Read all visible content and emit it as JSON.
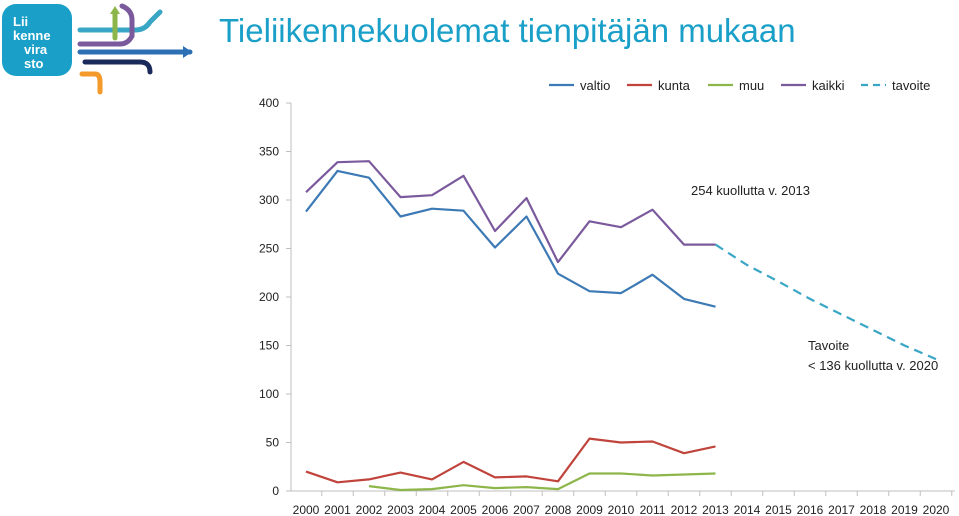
{
  "header": {
    "title": "Tieliikennekuolemat tienpitäjän mukaan",
    "logo_text": [
      "Lii",
      "kenne",
      "vira",
      "sto"
    ]
  },
  "colors": {
    "brand": "#1aa0c8",
    "valtio": "#3d7ab5",
    "kunta": "#c0443c",
    "muu": "#8db64a",
    "kaikki": "#7a5a9c",
    "tavoite": "#3aa6c6",
    "grid": "#d9d9d9"
  },
  "chart_data": {
    "type": "line",
    "title": "",
    "xlabel": "",
    "ylabel": "",
    "ylim": [
      0,
      400
    ],
    "yticks": [
      0,
      50,
      100,
      150,
      200,
      250,
      300,
      350,
      400
    ],
    "grid": false,
    "legend": "top-right",
    "categories": [
      "2000",
      "2001",
      "2002",
      "2003",
      "2004",
      "2005",
      "2006",
      "2007",
      "2008",
      "2009",
      "2010",
      "2011",
      "2012",
      "2013",
      "2014",
      "2015",
      "2016",
      "2017",
      "2018",
      "2019",
      "2020"
    ],
    "series": [
      {
        "name": "valtio",
        "key": "valtio",
        "dashed": false,
        "values": [
          288,
          330,
          323,
          283,
          291,
          289,
          251,
          283,
          224,
          206,
          204,
          223,
          198,
          190,
          null,
          null,
          null,
          null,
          null,
          null,
          null
        ]
      },
      {
        "name": "kunta",
        "key": "kunta",
        "dashed": false,
        "values": [
          20,
          9,
          12,
          19,
          12,
          30,
          14,
          15,
          10,
          54,
          50,
          51,
          39,
          46,
          null,
          null,
          null,
          null,
          null,
          null,
          null
        ]
      },
      {
        "name": "muu",
        "key": "muu",
        "dashed": false,
        "values": [
          null,
          null,
          5,
          1,
          2,
          6,
          3,
          4,
          2,
          18,
          18,
          16,
          17,
          18,
          null,
          null,
          null,
          null,
          null,
          null,
          null
        ]
      },
      {
        "name": "kaikki",
        "key": "kaikki",
        "dashed": false,
        "values": [
          308,
          339,
          340,
          303,
          305,
          325,
          268,
          302,
          236,
          278,
          272,
          290,
          254,
          254,
          null,
          null,
          null,
          null,
          null,
          null,
          null
        ]
      },
      {
        "name": "tavoite",
        "key": "tavoite",
        "dashed": true,
        "values": [
          null,
          null,
          null,
          null,
          null,
          null,
          null,
          null,
          null,
          null,
          null,
          null,
          null,
          254,
          233,
          216,
          198,
          182,
          166,
          150,
          136
        ]
      }
    ],
    "annotations": [
      {
        "text": "254 kuollutta v. 2013"
      },
      {
        "text": "Tavoite"
      },
      {
        "text": "< 136 kuollutta v. 2020"
      }
    ]
  }
}
